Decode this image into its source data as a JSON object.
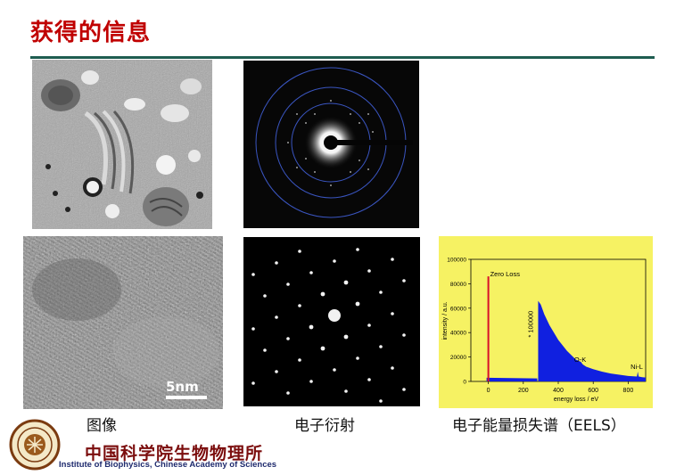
{
  "title": "获得的信息",
  "captions": {
    "imaging": "图像",
    "diffraction": "电子衍射",
    "eels": "电子能量损失谱（EELS）"
  },
  "hrtem": {
    "scale_bar": "5nm"
  },
  "eels_chart": {
    "chart_data": {
      "type": "line",
      "xlabel": "energy loss / eV",
      "ylabel": "intensity / a.u.",
      "xlim": [
        -100,
        900
      ],
      "ylim": [
        0,
        100000
      ],
      "x_ticks": [
        "0",
        "200",
        "400",
        "600",
        "800"
      ],
      "y_ticks": [
        "0",
        "20000",
        "40000",
        "60000",
        "80000",
        "100000"
      ],
      "multiplier_label": "* 100000",
      "annotations": [
        {
          "text": "Zero Loss",
          "x": 0,
          "y": 84000
        },
        {
          "text": "O-K",
          "x": 532,
          "y": 14000
        },
        {
          "text": "Ni-L",
          "x": 855,
          "y": 8000
        }
      ],
      "zero_loss_peak": {
        "x": 0,
        "y": 86000
      },
      "x": [
        -10,
        0,
        10,
        30,
        100,
        200,
        280,
        285,
        300,
        320,
        350,
        400,
        450,
        500,
        530,
        540,
        560,
        600,
        650,
        700,
        750,
        800,
        850,
        855,
        860,
        880,
        900
      ],
      "y": [
        3000,
        86000,
        5000,
        3000,
        2500,
        2500,
        2500,
        66000,
        63000,
        55000,
        46000,
        34000,
        25000,
        18000,
        16000,
        14000,
        12000,
        10000,
        8000,
        6500,
        5500,
        4500,
        4000,
        8000,
        4000,
        3500,
        3200
      ]
    }
  },
  "institute": {
    "name_zh": "中国科学院生物物理所",
    "name_en": "Institute of Biophysics, Chinese Academy of Sciences"
  }
}
